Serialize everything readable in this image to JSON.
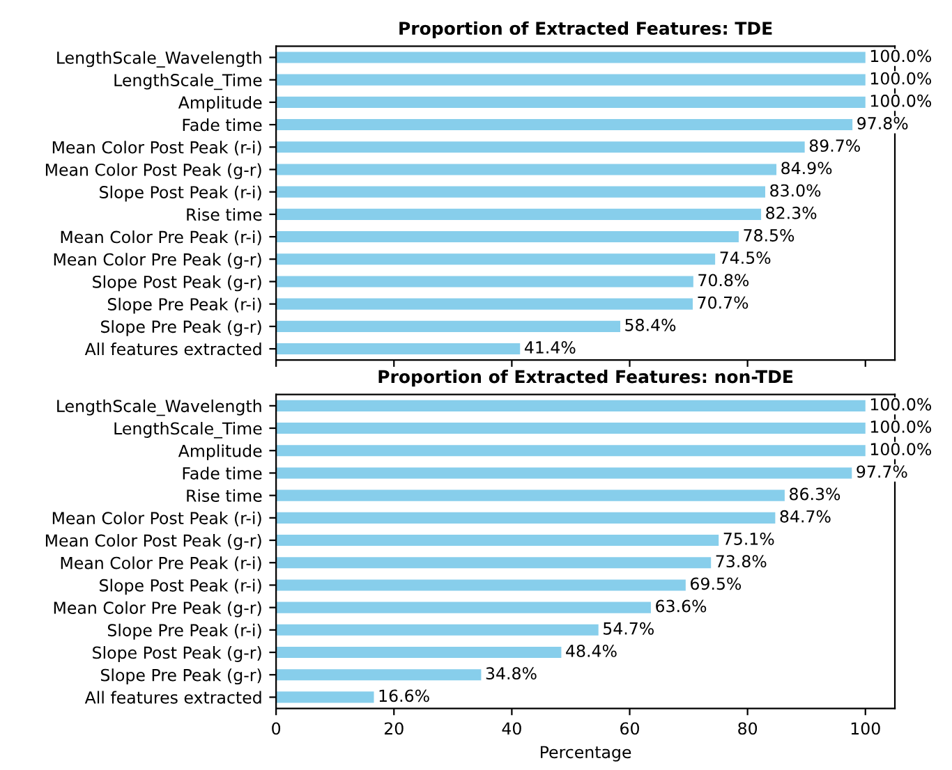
{
  "chart_data": [
    {
      "type": "bar",
      "orientation": "horizontal",
      "title": "Proportion of Extracted Features: TDE",
      "categories": [
        "LengthScale_Wavelength",
        "LengthScale_Time",
        "Amplitude",
        "Fade time",
        "Mean Color Post Peak (r-i)",
        "Mean Color Post Peak (g-r)",
        "Slope Post Peak (r-i)",
        "Rise time",
        "Mean Color Pre Peak (r-i)",
        "Mean Color Pre Peak (g-r)",
        "Slope Post Peak (g-r)",
        "Slope Pre Peak (r-i)",
        "Slope Pre Peak (g-r)",
        "All features extracted"
      ],
      "values": [
        100.0,
        100.0,
        100.0,
        97.8,
        89.7,
        84.9,
        83.0,
        82.3,
        78.5,
        74.5,
        70.8,
        70.7,
        58.4,
        41.4
      ],
      "value_labels": [
        "100.0%",
        "100.0%",
        "100.0%",
        "97.8%",
        "89.7%",
        "84.9%",
        "83.0%",
        "82.3%",
        "78.5%",
        "74.5%",
        "70.8%",
        "70.7%",
        "58.4%",
        "41.4%"
      ],
      "color": "#87ceeb",
      "xlim": [
        0,
        105
      ],
      "xticks": [
        0,
        20,
        40,
        60,
        80,
        100
      ],
      "tick_labels": "y",
      "grid": false
    },
    {
      "type": "bar",
      "orientation": "horizontal",
      "title": "Proportion of Extracted Features: non-TDE",
      "xlabel": "Percentage",
      "categories": [
        "LengthScale_Wavelength",
        "LengthScale_Time",
        "Amplitude",
        "Fade time",
        "Rise time",
        "Mean Color Post Peak (r-i)",
        "Mean Color Post Peak (g-r)",
        "Mean Color Pre Peak (r-i)",
        "Slope Post Peak (r-i)",
        "Mean Color Pre Peak (g-r)",
        "Slope Pre Peak (r-i)",
        "Slope Post Peak (g-r)",
        "Slope Pre Peak (g-r)",
        "All features extracted"
      ],
      "values": [
        100.0,
        100.0,
        100.0,
        97.7,
        86.3,
        84.7,
        75.1,
        73.8,
        69.5,
        63.6,
        54.7,
        48.4,
        34.8,
        16.6
      ],
      "value_labels": [
        "100.0%",
        "100.0%",
        "100.0%",
        "97.7%",
        "86.3%",
        "84.7%",
        "75.1%",
        "73.8%",
        "69.5%",
        "63.6%",
        "54.7%",
        "48.4%",
        "34.8%",
        "16.6%"
      ],
      "color": "#87ceeb",
      "xlim": [
        0,
        105
      ],
      "xticks": [
        0,
        20,
        40,
        60,
        80,
        100
      ],
      "grid": false
    }
  ]
}
